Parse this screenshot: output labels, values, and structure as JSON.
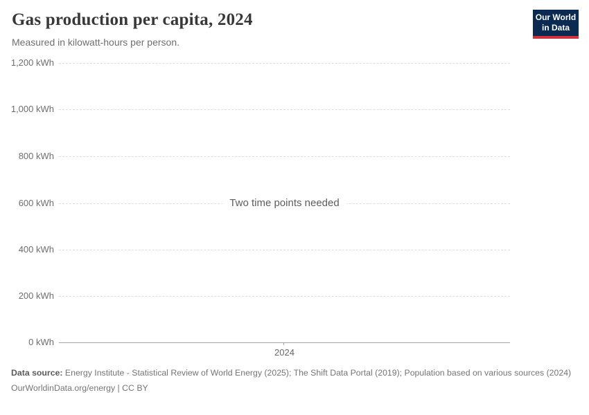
{
  "header": {
    "title": "Gas production per capita, 2024",
    "subtitle": "Measured in kilowatt-hours per person.",
    "logo": {
      "line1": "Our World",
      "line2": "in Data"
    }
  },
  "chart_data": {
    "type": "line",
    "title": "Gas production per capita, 2024",
    "subtitle": "Measured in kilowatt-hours per person.",
    "unit": "kWh",
    "series": [],
    "empty_state_message": "Two time points needed",
    "x_tick_labels": [
      "2024"
    ],
    "y_tick_labels_top_to_bottom": [
      "1,200 kWh",
      "1,000 kWh",
      "800 kWh",
      "600 kWh",
      "400 kWh",
      "200 kWh",
      "0 kWh"
    ],
    "ylim": [
      0,
      1200
    ],
    "grid": "horizontal-dashed",
    "legend": "none"
  },
  "footer": {
    "data_source_label": "Data source:",
    "data_source_text": " Energy Institute - Statistical Review of World Energy (2025); The Shift Data Portal (2019); Population based on various sources (2024)",
    "url_label": "OurWorldinData.org/energy",
    "divider": " | ",
    "license_label": "CC BY"
  },
  "colors": {
    "logo_background": "#0a2a51",
    "logo_accent": "#d1323e",
    "title_text": "#383838",
    "muted_text": "#6e6e6e",
    "gridline": "#dedede",
    "axis_line": "#a3a3a3",
    "background": "#ffffff"
  }
}
